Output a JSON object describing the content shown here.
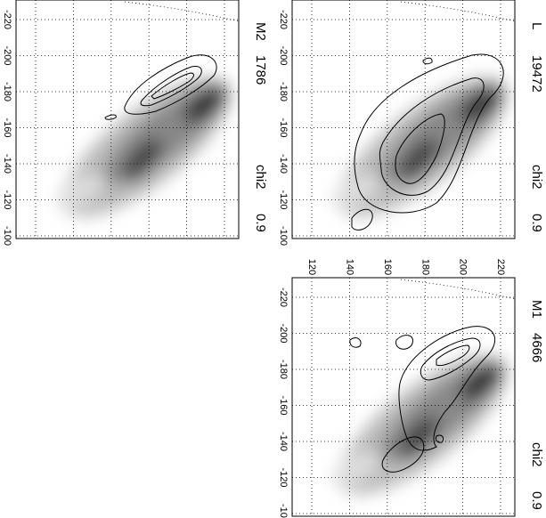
{
  "panels": [
    {
      "name": "M2",
      "count": "1786",
      "stat_label": "chi2",
      "stat": "0.9"
    },
    {
      "name": "L",
      "count": "19472",
      "stat_label": "chi2",
      "stat": "0.9"
    },
    {
      "name": "M1",
      "count": "4666",
      "stat_label": "chi2",
      "stat": "0.9"
    }
  ],
  "yticks": [
    -220,
    -200,
    -180,
    -160,
    -140,
    -120,
    -100
  ],
  "xticks": [
    120,
    140,
    160,
    180,
    200,
    220
  ]
}
